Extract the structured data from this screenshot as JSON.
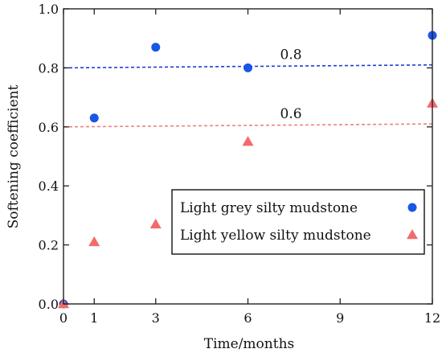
{
  "chart_data": {
    "type": "scatter",
    "title": "",
    "xlabel": "Time/months",
    "ylabel": "Softening coefficient",
    "xlim": [
      0,
      12
    ],
    "ylim": [
      0,
      1.0
    ],
    "x_ticks": [
      0,
      1,
      3,
      6,
      9,
      12
    ],
    "y_ticks": [
      0.0,
      0.2,
      0.4,
      0.6,
      0.8,
      1.0
    ],
    "x_tick_labels": [
      "0",
      "1",
      "3",
      "6",
      "9",
      "12"
    ],
    "y_tick_labels": [
      "0.0",
      "0.2",
      "0.4",
      "0.6",
      "0.8",
      "1.0"
    ],
    "grid": false,
    "legend_position": "lower-right",
    "series": [
      {
        "name": "Light grey silty mudstone",
        "marker": "circle",
        "color": "#1a56e6",
        "points": [
          [
            0,
            0.0
          ],
          [
            1,
            0.63
          ],
          [
            3,
            0.87
          ],
          [
            6,
            0.8
          ],
          [
            12,
            0.91
          ]
        ]
      },
      {
        "name": "Light yellow silty mudstone",
        "marker": "triangle",
        "color": "#f26b6b",
        "points": [
          [
            0,
            0.0
          ],
          [
            1,
            0.21
          ],
          [
            3,
            0.27
          ],
          [
            6,
            0.55
          ],
          [
            12,
            0.68
          ]
        ]
      }
    ],
    "reference_lines": [
      {
        "label": "0.8",
        "color": "#1a3fd6",
        "y_start": 0.8,
        "y_end": 0.81
      },
      {
        "label": "0.6",
        "color": "#f08080",
        "y_start": 0.6,
        "y_end": 0.61
      }
    ]
  }
}
